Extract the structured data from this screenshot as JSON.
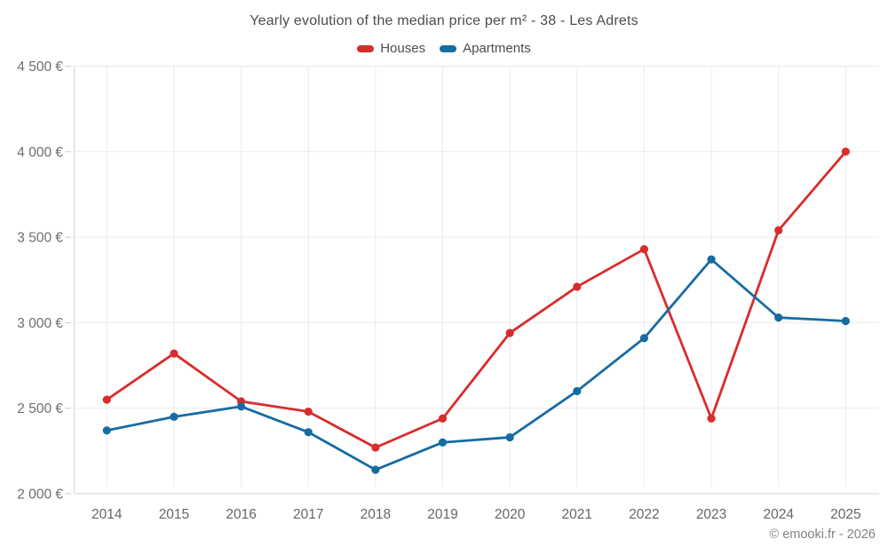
{
  "title": "Yearly evolution of the median price per m² - 38 - Les Adrets",
  "legend": {
    "items": [
      {
        "label": "Houses",
        "color": "#d92c2c"
      },
      {
        "label": "Apartments",
        "color": "#176ba3"
      }
    ]
  },
  "footer": {
    "text": "© emooki.fr - 2026"
  },
  "chart_data": {
    "type": "line",
    "title": "Yearly evolution of the median price per m² - 38 - Les Adrets",
    "x": [
      2014,
      2015,
      2016,
      2017,
      2018,
      2019,
      2020,
      2021,
      2022,
      2023,
      2024,
      2025
    ],
    "series": [
      {
        "name": "Houses",
        "color": "#d92c2c",
        "values": [
          2550,
          2820,
          2540,
          2480,
          2270,
          2440,
          2940,
          3210,
          3430,
          2440,
          3540,
          4000
        ]
      },
      {
        "name": "Apartments",
        "color": "#176ba3",
        "values": [
          2370,
          2450,
          2510,
          2360,
          2140,
          2300,
          2330,
          2600,
          2910,
          3370,
          3030,
          3010
        ]
      }
    ],
    "xlabel": "",
    "ylabel": "",
    "ylim": [
      2000,
      4500
    ],
    "y_tick_values": [
      2000,
      2500,
      3000,
      3500,
      4000,
      4500
    ],
    "y_tick_labels": [
      "2 000 €",
      "2 500 €",
      "3 000 €",
      "3 500 €",
      "4 000 €",
      "4 500 €"
    ],
    "currency": "€",
    "grid": true,
    "legend_position": "top",
    "point_markers": true
  }
}
